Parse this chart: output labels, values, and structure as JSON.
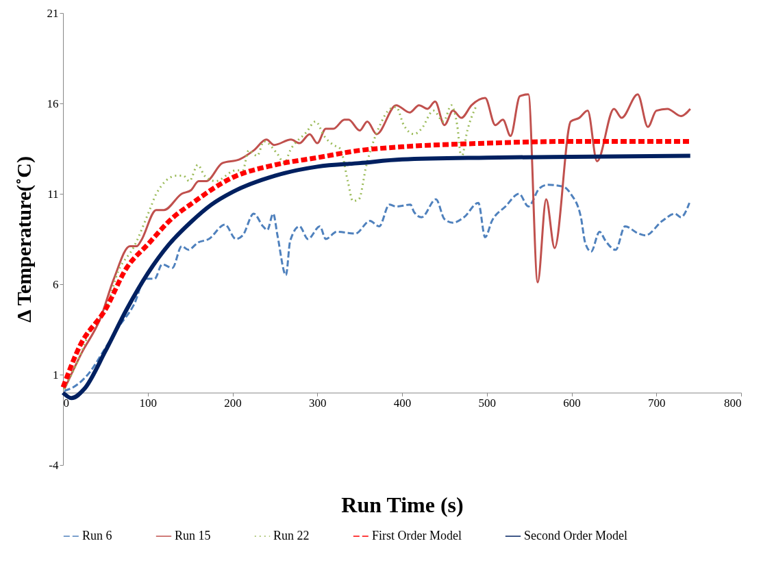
{
  "chart_data": {
    "type": "line",
    "xlabel": "Run Time (s)",
    "ylabel": "Δ Temperature(˚C)",
    "xlim": [
      0,
      800
    ],
    "xticks": [
      0,
      100,
      200,
      300,
      400,
      500,
      600,
      700,
      800
    ],
    "ylim": [
      -4,
      21
    ],
    "yticks": [
      -4,
      1,
      6,
      11,
      16,
      21
    ],
    "grid": false,
    "legend": "bottom",
    "series": [
      {
        "name": "Run 6",
        "color": "#4f81bd",
        "line_style": "dashed",
        "x": [
          1.6,
          12,
          31,
          49,
          65,
          84,
          97,
          108,
          117,
          129,
          140,
          148,
          159,
          172,
          191,
          204,
          212,
          225,
          236,
          241,
          248,
          253,
          263,
          268,
          279,
          289,
          303,
          310,
          323,
          345,
          362,
          373,
          385,
          393,
          410,
          414,
          423,
          440,
          450,
          460,
          473,
          490,
          498,
          506,
          522,
          538,
          549,
          562,
          572,
          590,
          599,
          611,
          616,
          623,
          633,
          640,
          652,
          663,
          679,
          687,
          707,
          722,
          729,
          739
        ],
        "values": [
          0.1,
          0.3,
          1.1,
          2.4,
          3.6,
          4.9,
          6.3,
          6.3,
          7.1,
          6.9,
          8.1,
          7.9,
          8.3,
          8.5,
          9.3,
          8.5,
          8.7,
          9.9,
          9.2,
          9.0,
          9.9,
          8.7,
          6.5,
          8.4,
          9.2,
          8.5,
          9.2,
          8.5,
          8.9,
          8.8,
          9.5,
          9.2,
          10.4,
          10.3,
          10.4,
          10.0,
          9.7,
          10.7,
          9.6,
          9.4,
          9.7,
          10.5,
          8.6,
          9.5,
          10.3,
          11.0,
          10.3,
          11.3,
          11.5,
          11.4,
          11.0,
          9.7,
          8.3,
          7.8,
          8.9,
          8.4,
          7.9,
          9.2,
          8.8,
          8.7,
          9.5,
          9.9,
          9.7,
          10.5
        ]
      },
      {
        "name": "Run 15",
        "color": "#c0504d",
        "line_style": "solid",
        "x": [
          1.6,
          22,
          44,
          60,
          79,
          87,
          92,
          110,
          119,
          140,
          151,
          160,
          169,
          188,
          208,
          225,
          240,
          249,
          269,
          279,
          291,
          300,
          310,
          319,
          332,
          337,
          350,
          359,
          370,
          393,
          409,
          420,
          430,
          439,
          450,
          460,
          470,
          482,
          498,
          510,
          519,
          528,
          539,
          549,
          560,
          570,
          580,
          599,
          609,
          619,
          630,
          650,
          659,
          678,
          690,
          700,
          713,
          729,
          740
        ],
        "values": [
          0.2,
          2.2,
          4.1,
          6.3,
          8.1,
          8.1,
          8.4,
          10.1,
          10.1,
          11.0,
          11.2,
          11.7,
          11.7,
          12.7,
          12.9,
          13.4,
          14.0,
          13.7,
          14.0,
          13.8,
          14.3,
          13.8,
          14.6,
          14.6,
          15.1,
          15.1,
          14.5,
          15.0,
          14.3,
          15.9,
          15.5,
          15.9,
          15.7,
          16.1,
          14.8,
          15.6,
          15.2,
          15.9,
          16.3,
          14.8,
          15.1,
          14.2,
          16.4,
          16.5,
          6.1,
          10.7,
          8.0,
          15.0,
          15.2,
          15.6,
          12.8,
          15.7,
          15.2,
          16.5,
          14.7,
          15.6,
          15.7,
          15.3,
          15.7
        ]
      },
      {
        "name": "Run 22",
        "color": "#9bbb59",
        "line_style": "dotted",
        "x": [
          1.6,
          17,
          36,
          49,
          65,
          84,
          103,
          110,
          134,
          142,
          149,
          159,
          167,
          180,
          204,
          212,
          219,
          229,
          237,
          253,
          261,
          268,
          287,
          298,
          308,
          319,
          327,
          336,
          342,
          349,
          358,
          367,
          373,
          386,
          393,
          402,
          414,
          423,
          437,
          449,
          458,
          465,
          470,
          477,
          487
        ],
        "values": [
          0.2,
          1.7,
          3.8,
          4.4,
          6.7,
          8.1,
          10.2,
          11.0,
          12.0,
          12.0,
          11.7,
          12.6,
          12.0,
          11.7,
          12.3,
          12.3,
          13.4,
          13.1,
          13.9,
          13.2,
          12.7,
          13.4,
          14.4,
          15.0,
          14.2,
          13.7,
          13.5,
          11.7,
          10.6,
          10.7,
          12.6,
          14.0,
          14.7,
          15.7,
          15.8,
          14.8,
          14.3,
          14.6,
          15.6,
          15.0,
          15.9,
          14.8,
          13.0,
          14.5,
          15.8
        ]
      },
      {
        "name": "First Order Model",
        "color": "#ff0000",
        "line_style": "dashed",
        "x": [
          0,
          20,
          50,
          75,
          100,
          130,
          150,
          200,
          250,
          300,
          350,
          400,
          500,
          600,
          740
        ],
        "values": [
          0.3,
          2.6,
          4.6,
          6.9,
          8.2,
          9.7,
          10.4,
          11.9,
          12.6,
          13.0,
          13.4,
          13.6,
          13.8,
          13.9,
          13.9
        ]
      },
      {
        "name": "Second Order Model",
        "color": "#002060",
        "line_style": "solid",
        "x": [
          0,
          10,
          25,
          50,
          75,
          100,
          125,
          150,
          175,
          200,
          250,
          300,
          350,
          400,
          500,
          600,
          740
        ],
        "values": [
          0,
          -0.3,
          0.2,
          2.3,
          4.6,
          6.6,
          8.2,
          9.4,
          10.4,
          11.1,
          12.0,
          12.5,
          12.7,
          12.9,
          13.0,
          13.05,
          13.1
        ]
      }
    ]
  }
}
